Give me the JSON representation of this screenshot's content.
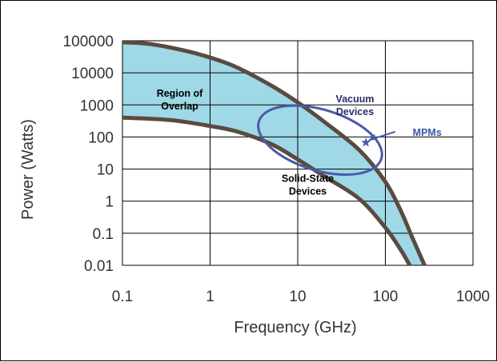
{
  "chart_data": {
    "type": "area",
    "xlabel": "Frequency (GHz)",
    "ylabel": "Power (Watts)",
    "x_scale": "log",
    "y_scale": "log",
    "xlim": [
      0.1,
      1000
    ],
    "ylim": [
      0.01,
      100000
    ],
    "x_ticks": [
      "0.1",
      "1",
      "10",
      "100",
      "1000"
    ],
    "y_ticks": [
      "100000",
      "10000",
      "1000",
      "100",
      "10",
      "1",
      "0.1",
      "0.01"
    ],
    "grid": true,
    "series": [
      {
        "name": "Vacuum Devices",
        "x": [
          0.1,
          0.2,
          0.5,
          1,
          2,
          5,
          10,
          20,
          50,
          100,
          150,
          200,
          280
        ],
        "y": [
          90000,
          80000,
          50000,
          30000,
          15000,
          4000,
          1200,
          300,
          40,
          4,
          0.5,
          0.08,
          0.01
        ]
      },
      {
        "name": "Solid-State Devices",
        "x": [
          0.1,
          0.3,
          0.5,
          1,
          2,
          5,
          10,
          20,
          50,
          100,
          150,
          190
        ],
        "y": [
          400,
          350,
          300,
          220,
          150,
          60,
          20,
          6,
          1.2,
          0.15,
          0.03,
          0.01
        ]
      }
    ],
    "annotations": [
      {
        "text": [
          "Region of",
          "Overlap"
        ],
        "x": 0.45,
        "y": 1800
      },
      {
        "text": [
          "Vacuum",
          "Devices"
        ],
        "x": 45,
        "y": 1200
      },
      {
        "text": [
          "Solid-State",
          "Devices"
        ],
        "x": 13,
        "y": 4
      },
      {
        "text": [
          "MPMs"
        ],
        "x": 300,
        "y": 110
      }
    ],
    "mpm_ellipse": {
      "center": [
        18,
        80
      ],
      "label": "MPMs",
      "marker_x": 60,
      "marker_y": 70
    },
    "colors": {
      "fill": "#9fd8e6",
      "curve": "#5a4a40",
      "ellipse": "#4a5aa8",
      "grid": "#000000",
      "annotation_black": "#000000",
      "annotation_navy": "#2b2b6b",
      "annotation_blue": "#3b56a6"
    }
  }
}
